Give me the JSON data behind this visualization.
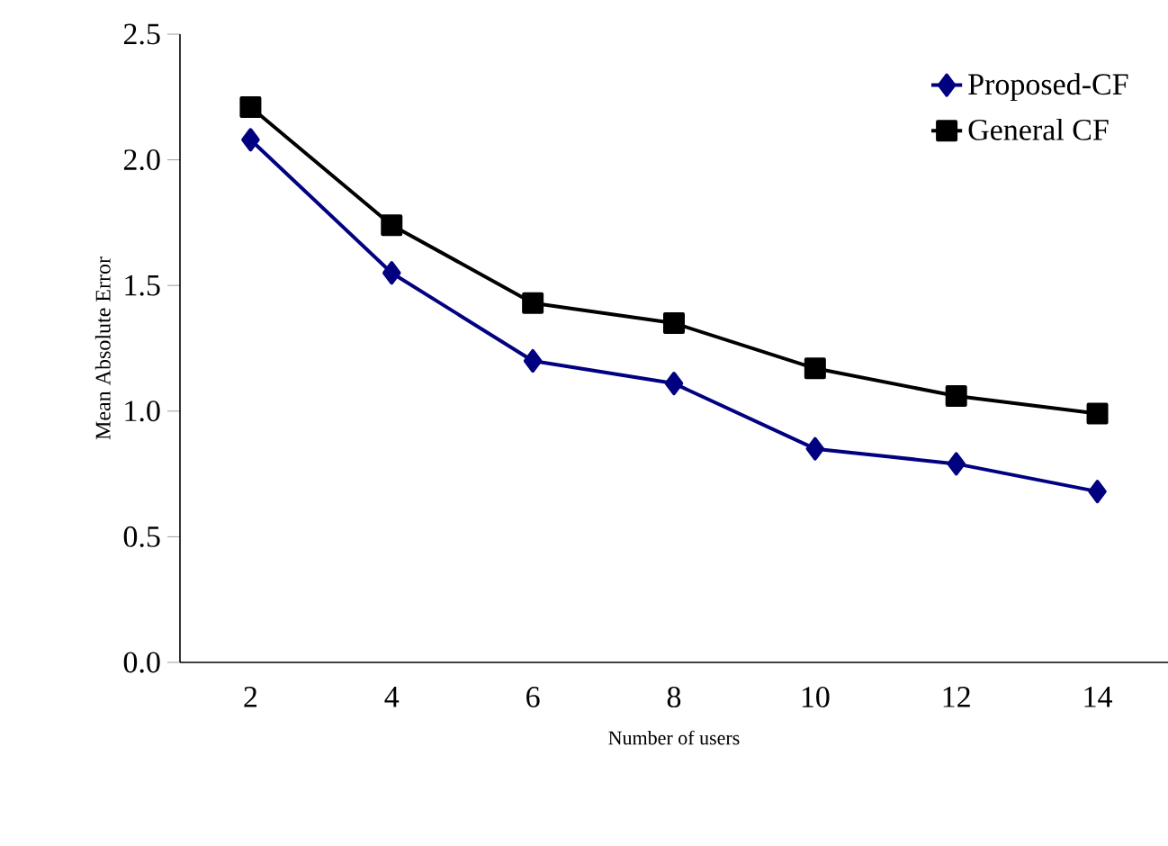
{
  "chart_data": {
    "type": "line",
    "xlabel": "Number of users",
    "ylabel": "Mean Absolute Error",
    "categories": [
      "2",
      "4",
      "6",
      "8",
      "10",
      "12",
      "14"
    ],
    "series": [
      {
        "name": "Proposed-CF",
        "color": "#000080",
        "marker": "diamond",
        "values": [
          2.08,
          1.55,
          1.2,
          1.11,
          0.85,
          0.79,
          0.68
        ]
      },
      {
        "name": "General CF",
        "color": "#000000",
        "marker": "square",
        "values": [
          2.21,
          1.74,
          1.43,
          1.35,
          1.17,
          1.06,
          0.99
        ]
      }
    ],
    "ylim": [
      0,
      2.5
    ],
    "yticks": [
      {
        "value": 0,
        "label": "0.0"
      },
      {
        "value": 0.5,
        "label": "0.5"
      },
      {
        "value": 1,
        "label": "1.0"
      },
      {
        "value": 1.5,
        "label": "1.5"
      },
      {
        "value": 2,
        "label": "2.0"
      },
      {
        "value": 2.5,
        "label": "2.5"
      }
    ],
    "grid": false,
    "legend": "top right",
    "line_style": "solid"
  }
}
